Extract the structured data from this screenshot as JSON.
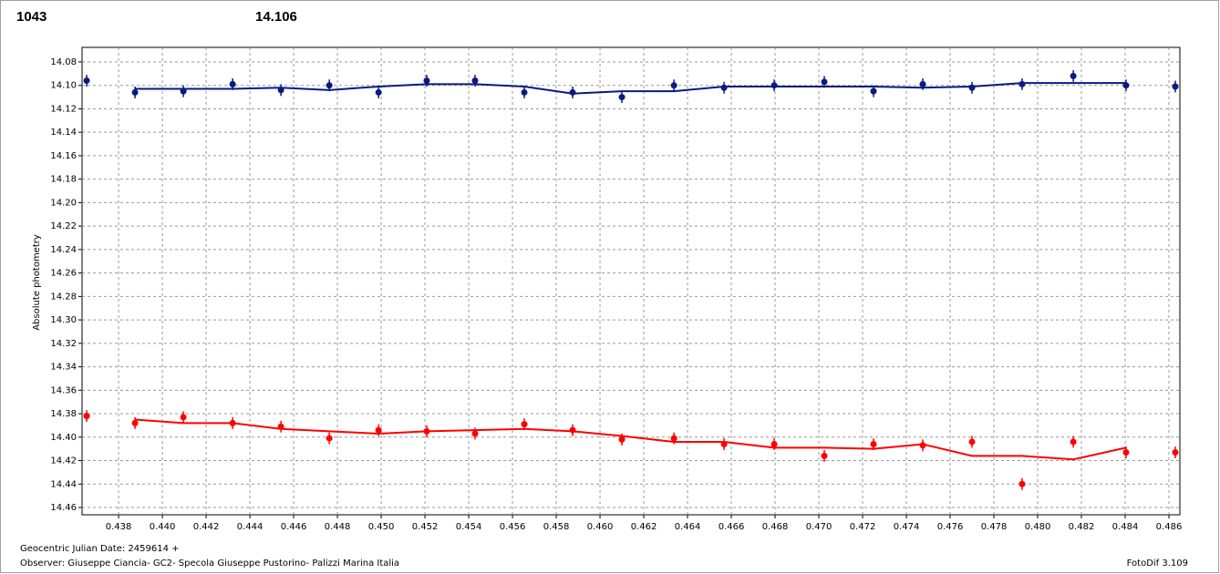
{
  "chart_data": {
    "type": "scatter",
    "y_label": "Absolute photometry",
    "x_label": "Geocentric Julian Date: 2459614 +",
    "observer": "Observer: Giuseppe Ciancia- GC2- Specola Giuseppe Pustorino- Palizzi Marina Italia",
    "software": "FotoDif 3.109",
    "grid": true,
    "y_inverted": true,
    "xlim": [
      0.43633,
      0.4865
    ],
    "ylim": [
      14.0676,
      14.4662
    ],
    "xticks": [
      0.438,
      {
        "value": 0.44,
        "label": "0.440"
      },
      0.442,
      0.444,
      0.446,
      0.448,
      {
        "value": 0.45,
        "label": "0.450"
      },
      0.452,
      0.454,
      0.456,
      0.458,
      {
        "value": 0.46,
        "label": "0.460"
      },
      0.462,
      0.464,
      0.466,
      0.468,
      {
        "value": 0.47,
        "label": "0.470"
      },
      0.472,
      0.474,
      0.476,
      0.478,
      {
        "value": 0.48,
        "label": "0.480"
      },
      0.482,
      0.484,
      0.486
    ],
    "yticks": [
      14.08,
      {
        "value": 14.1,
        "label": "14.10"
      },
      14.12,
      14.14,
      14.16,
      14.18,
      {
        "value": 14.2,
        "label": "14.20"
      },
      14.22,
      14.24,
      14.26,
      14.28,
      {
        "value": 14.3,
        "label": "14.30"
      },
      14.32,
      14.34,
      14.36,
      14.38,
      {
        "value": 14.4,
        "label": "14.40"
      },
      14.42,
      14.44,
      14.46
    ],
    "x": [
      0.43654,
      0.43875,
      0.44096,
      0.44321,
      0.44542,
      0.44763,
      0.44988,
      0.45208,
      0.45429,
      0.45654,
      0.45875,
      0.461,
      0.46338,
      0.46567,
      0.46796,
      0.47025,
      0.4725,
      0.47475,
      0.477,
      0.47929,
      0.48163,
      0.48404,
      0.48629
    ],
    "series": [
      {
        "name": "1043",
        "color": "#ff0000",
        "error": 0.005,
        "values": [
          14.382,
          14.388,
          14.383,
          14.388,
          14.391,
          14.401,
          14.394,
          14.395,
          14.397,
          14.389,
          14.394,
          14.402,
          14.401,
          14.406,
          14.406,
          14.416,
          14.406,
          14.407,
          14.404,
          14.44,
          14.404,
          14.413,
          14.413
        ],
        "fit": [
          null,
          14.385,
          14.388,
          14.388,
          14.393,
          14.395,
          14.397,
          14.395,
          14.394,
          14.393,
          14.395,
          14.399,
          14.404,
          14.404,
          14.409,
          14.409,
          14.41,
          14.406,
          14.416,
          14.416,
          14.419,
          14.409,
          null
        ]
      },
      {
        "name": "14.106",
        "color": "#0a1a80",
        "error": 0.005,
        "values": [
          14.096,
          14.106,
          14.105,
          14.099,
          14.104,
          14.1,
          14.106,
          14.096,
          14.096,
          14.106,
          14.106,
          14.11,
          14.1,
          14.102,
          14.1,
          14.097,
          14.105,
          14.099,
          14.102,
          14.099,
          14.092,
          14.1,
          14.101
        ],
        "fit": [
          null,
          14.103,
          14.103,
          14.103,
          14.102,
          14.104,
          14.101,
          14.099,
          14.099,
          14.101,
          14.107,
          14.105,
          14.105,
          14.101,
          14.101,
          14.101,
          14.101,
          14.102,
          14.101,
          14.098,
          14.098,
          14.098,
          null
        ]
      }
    ]
  }
}
